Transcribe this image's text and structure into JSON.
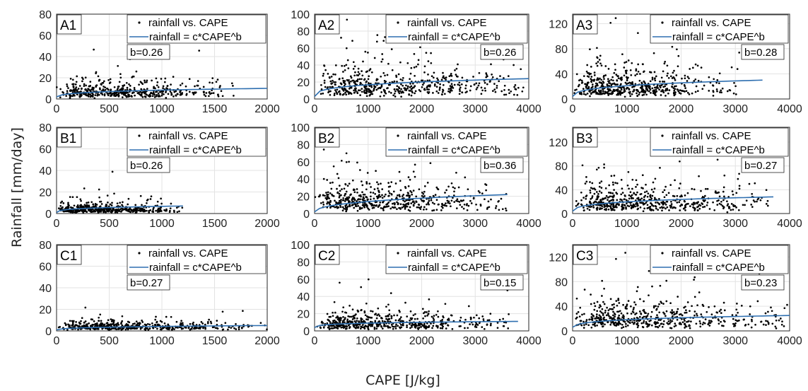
{
  "figure": {
    "xlabel": "CAPE [J/kg]",
    "ylabel": "Rainfall [mm/day]",
    "legend": {
      "points": "rainfall vs. CAPE",
      "fit": "rainfall = c*CAPE^b"
    },
    "colors": {
      "points": "#000000",
      "fit": "#2e6fb0"
    }
  },
  "chart_data": [
    {
      "id": "A1",
      "type": "scatter",
      "label": "A1",
      "b_label": "b=0.26",
      "b": 0.26,
      "xlim": [
        0,
        2000
      ],
      "ylim": [
        0,
        80
      ],
      "xticks": [
        0,
        500,
        1000,
        1500,
        2000
      ],
      "yticks": [
        0,
        20,
        40,
        60,
        80
      ],
      "cape_max": 1700,
      "rain_mean": 7,
      "fit": {
        "x": [
          0,
          2000
        ],
        "y": [
          2,
          10
        ]
      },
      "seed": 11,
      "n": 480
    },
    {
      "id": "A2",
      "type": "scatter",
      "label": "A2",
      "b_label": "b=0.26",
      "b": 0.26,
      "xlim": [
        0,
        4000
      ],
      "ylim": [
        0,
        100
      ],
      "xticks": [
        0,
        1000,
        2000,
        3000,
        4000
      ],
      "yticks": [
        0,
        20,
        40,
        60,
        80,
        100
      ],
      "cape_max": 3900,
      "rain_mean": 16,
      "fit": {
        "x": [
          0,
          4000
        ],
        "y": [
          3,
          24
        ]
      },
      "seed": 23,
      "n": 520
    },
    {
      "id": "A3",
      "type": "scatter",
      "label": "A3",
      "b_label": "b=0.28",
      "b": 0.28,
      "xlim": [
        0,
        4000
      ],
      "ylim": [
        0,
        135
      ],
      "xticks": [
        0,
        1000,
        2000,
        3000,
        4000
      ],
      "yticks": [
        0,
        40,
        80,
        120
      ],
      "cape_max": 3100,
      "rain_mean": 20,
      "fit": {
        "x": [
          0,
          3500
        ],
        "y": [
          4,
          30
        ]
      },
      "seed": 37,
      "n": 520
    },
    {
      "id": "B1",
      "type": "scatter",
      "label": "B1",
      "b_label": "b=0.26",
      "b": 0.26,
      "xlim": [
        0,
        2000
      ],
      "ylim": [
        0,
        80
      ],
      "xticks": [
        0,
        500,
        1000,
        1500,
        2000
      ],
      "yticks": [
        0,
        20,
        40,
        60,
        80
      ],
      "cape_max": 1200,
      "rain_mean": 4,
      "fit": {
        "x": [
          0,
          1200
        ],
        "y": [
          1,
          7
        ]
      },
      "seed": 41,
      "n": 460
    },
    {
      "id": "B2",
      "type": "scatter",
      "label": "B2",
      "b_label": "b=0.36",
      "b": 0.36,
      "xlim": [
        0,
        4000
      ],
      "ylim": [
        0,
        100
      ],
      "xticks": [
        0,
        1000,
        2000,
        3000,
        4000
      ],
      "yticks": [
        0,
        20,
        40,
        60,
        80,
        100
      ],
      "cape_max": 3600,
      "rain_mean": 14,
      "fit": {
        "x": [
          0,
          3600
        ],
        "y": [
          2,
          22
        ]
      },
      "seed": 53,
      "n": 520
    },
    {
      "id": "B3",
      "type": "scatter",
      "label": "B3",
      "b_label": "b=0.27",
      "b": 0.27,
      "xlim": [
        0,
        4000
      ],
      "ylim": [
        0,
        145
      ],
      "xticks": [
        0,
        1000,
        2000,
        3000,
        4000
      ],
      "yticks": [
        0,
        40,
        80,
        120
      ],
      "cape_max": 3700,
      "rain_mean": 20,
      "fit": {
        "x": [
          0,
          3700
        ],
        "y": [
          4,
          28
        ]
      },
      "seed": 67,
      "n": 520
    },
    {
      "id": "C1",
      "type": "scatter",
      "label": "C1",
      "b_label": "b=0.27",
      "b": 0.27,
      "xlim": [
        0,
        2000
      ],
      "ylim": [
        0,
        80
      ],
      "xticks": [
        0,
        500,
        1000,
        1500,
        2000
      ],
      "yticks": [
        0,
        20,
        40,
        60,
        80
      ],
      "cape_max": 2000,
      "rain_mean": 4,
      "fit": {
        "x": [
          0,
          2000
        ],
        "y": [
          1,
          5
        ]
      },
      "seed": 79,
      "n": 470
    },
    {
      "id": "C2",
      "type": "scatter",
      "label": "C2",
      "b_label": "b=0.15",
      "b": 0.15,
      "xlim": [
        0,
        4000
      ],
      "ylim": [
        0,
        100
      ],
      "xticks": [
        0,
        1000,
        2000,
        3000,
        4000
      ],
      "yticks": [
        0,
        20,
        40,
        60,
        80,
        100
      ],
      "cape_max": 3700,
      "rain_mean": 9,
      "fit": {
        "x": [
          0,
          3800
        ],
        "y": [
          4,
          11
        ]
      },
      "seed": 83,
      "n": 520
    },
    {
      "id": "C3",
      "type": "scatter",
      "label": "C3",
      "b_label": "b=0.23",
      "b": 0.23,
      "xlim": [
        0,
        4000
      ],
      "ylim": [
        0,
        140
      ],
      "xticks": [
        0,
        1000,
        2000,
        3000,
        4000
      ],
      "yticks": [
        0,
        40,
        80,
        120
      ],
      "cape_max": 4000,
      "rain_mean": 20,
      "fit": {
        "x": [
          0,
          4000
        ],
        "y": [
          6,
          25
        ]
      },
      "seed": 97,
      "n": 520
    }
  ]
}
